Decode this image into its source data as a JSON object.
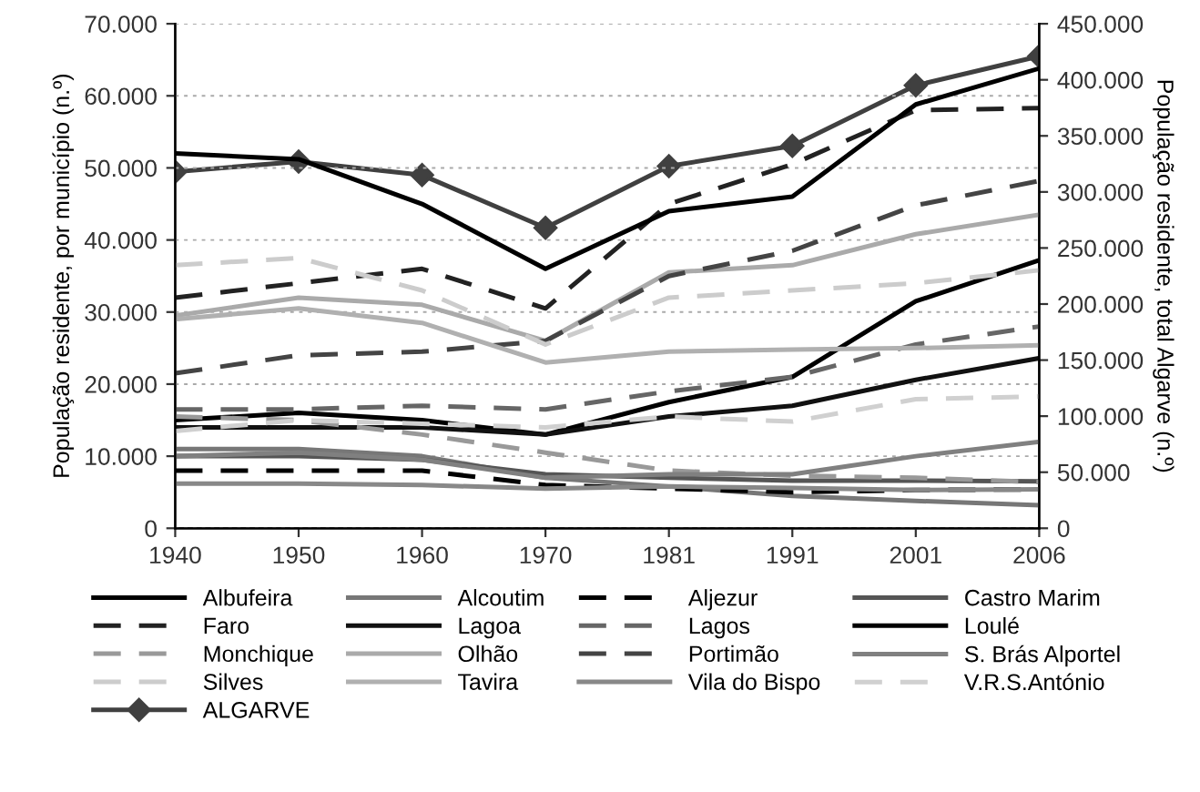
{
  "chart_data": {
    "type": "line",
    "ylabel": "População residente, por município (n.º)",
    "y2label": "População residente, total Algarve (n.º)",
    "categories": [
      "1940",
      "1950",
      "1960",
      "1970",
      "1981",
      "1991",
      "2001",
      "2006"
    ],
    "ylim": [
      0,
      70000
    ],
    "yticks": [
      0,
      {
        "value": 10000,
        "label": "10.000"
      },
      {
        "value": 20000,
        "label": "20.000"
      },
      {
        "value": 30000,
        "label": "30.000"
      },
      {
        "value": 40000,
        "label": "40.000"
      },
      {
        "value": 50000,
        "label": "50.000"
      },
      {
        "value": 60000,
        "label": "60.000"
      },
      {
        "value": 70000,
        "label": "70.000"
      }
    ],
    "y2lim": [
      0,
      450000
    ],
    "y2ticks": [
      0,
      {
        "value": 50000,
        "label": "50.000"
      },
      {
        "value": 100000,
        "label": "100.000"
      },
      {
        "value": 150000,
        "label": "150.000"
      },
      {
        "value": 200000,
        "label": "200.000"
      },
      {
        "value": 250000,
        "label": "250.000"
      },
      {
        "value": 300000,
        "label": "300.000"
      },
      {
        "value": 350000,
        "label": "350.000"
      },
      {
        "value": 400000,
        "label": "400.000"
      },
      {
        "value": 450000,
        "label": "450.000"
      }
    ],
    "grid": "y",
    "legend": "bottom",
    "marker": "none",
    "series": [
      {
        "name": "Albufeira",
        "color": "#000000",
        "line_style": "solid",
        "values": [
          15000,
          16000,
          15000,
          13000,
          17500,
          21000,
          31500,
          37200
        ]
      },
      {
        "name": "Alcoutim",
        "color": "#777777",
        "line_style": "solid",
        "values": [
          11000,
          11000,
          10000,
          7000,
          5800,
          4500,
          3800,
          3200
        ]
      },
      {
        "name": "Aljezur",
        "color": "#000000",
        "line_style": "dashed",
        "values": [
          8000,
          8000,
          8000,
          6000,
          5500,
          5000,
          5300,
          5400
        ]
      },
      {
        "name": "Castro Marim",
        "color": "#555555",
        "line_style": "solid",
        "values": [
          10000,
          10000,
          9500,
          7500,
          7000,
          6600,
          6600,
          6500
        ]
      },
      {
        "name": "Faro",
        "color": "#222222",
        "line_style": "dashed",
        "values": [
          32000,
          34000,
          36000,
          30500,
          45000,
          50500,
          58000,
          58300
        ]
      },
      {
        "name": "Lagoa",
        "color": "#111111",
        "line_style": "solid",
        "values": [
          14000,
          14000,
          14000,
          13000,
          15500,
          17000,
          20600,
          23600
        ]
      },
      {
        "name": "Lagos",
        "color": "#666666",
        "line_style": "dashed",
        "values": [
          16500,
          16500,
          17000,
          16500,
          19000,
          21000,
          25500,
          28000
        ]
      },
      {
        "name": "Loulé",
        "color": "#000000",
        "line_style": "solid",
        "values": [
          52000,
          51200,
          45000,
          36000,
          44000,
          46000,
          58800,
          63800
        ]
      },
      {
        "name": "Monchique",
        "color": "#999999",
        "line_style": "dashed",
        "values": [
          15500,
          15000,
          13000,
          10500,
          8000,
          7300,
          7000,
          6400
        ]
      },
      {
        "name": "Olhão",
        "color": "#aaaaaa",
        "line_style": "solid",
        "values": [
          29500,
          32000,
          31000,
          26000,
          35500,
          36500,
          40800,
          43500
        ]
      },
      {
        "name": "Portimão",
        "color": "#444444",
        "line_style": "dashed",
        "values": [
          21500,
          24000,
          24500,
          26000,
          35000,
          38500,
          44800,
          48200
        ]
      },
      {
        "name": "S. Brás Alportel",
        "color": "#808080",
        "line_style": "solid",
        "values": [
          10000,
          10500,
          9500,
          7000,
          7500,
          7500,
          10000,
          12000
        ]
      },
      {
        "name": "Silves",
        "color": "#cccccc",
        "line_style": "dashed",
        "values": [
          36500,
          37500,
          33000,
          25500,
          32000,
          33000,
          34000,
          35800
        ]
      },
      {
        "name": "Tavira",
        "color": "#b0b0b0",
        "line_style": "solid",
        "values": [
          29000,
          30500,
          28500,
          23000,
          24500,
          24800,
          25000,
          25400
        ]
      },
      {
        "name": "Vila do Bispo",
        "color": "#888888",
        "line_style": "solid",
        "values": [
          6200,
          6200,
          6000,
          5500,
          5800,
          5600,
          5300,
          5400
        ]
      },
      {
        "name": "V.R.S.António",
        "color": "#d0d0d0",
        "line_style": "dashed",
        "values": [
          13500,
          15000,
          14500,
          14000,
          15500,
          14800,
          17900,
          18300
        ]
      },
      {
        "name": "ALGARVE",
        "color": "#404040",
        "line_style": "solid",
        "marker": "diamond",
        "axis": "y2",
        "values": [
          318000,
          327000,
          315000,
          268000,
          323000,
          341000,
          395000,
          421000
        ]
      }
    ]
  }
}
